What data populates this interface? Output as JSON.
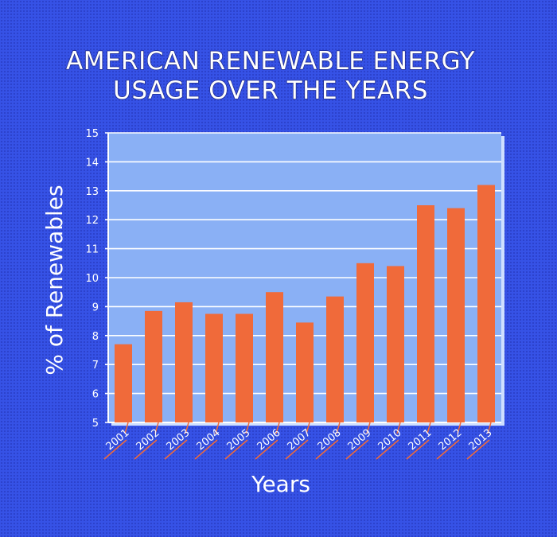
{
  "chart_data": {
    "type": "bar",
    "title": "AMERICAN RENEWABLE ENERGY USAGE OVER THE YEARS",
    "title_lines": [
      "AMERICAN RENEWABLE ENERGY",
      "USAGE OVER THE YEARS"
    ],
    "xlabel": "Years",
    "ylabel": "% of Renewables",
    "categories": [
      "2001",
      "2002",
      "2003",
      "2004",
      "2005",
      "2006",
      "2007",
      "2008",
      "2009",
      "2010",
      "2011",
      "2012",
      "2013"
    ],
    "values": [
      7.7,
      8.85,
      9.15,
      8.75,
      8.75,
      9.5,
      8.45,
      9.35,
      10.5,
      10.4,
      12.5,
      12.4,
      13.2
    ],
    "ylim": [
      5,
      15
    ],
    "yticks": [
      "5",
      "6",
      "7",
      "8",
      "9",
      "10",
      "11",
      "12",
      "13",
      "14",
      "15"
    ],
    "grid": true,
    "legend": "none",
    "colors": {
      "background": "#3652e6",
      "plot_area": "#8ab0f5",
      "bar": "#f06a3a",
      "grid": "#ffffff",
      "text": "#ffffff"
    }
  }
}
